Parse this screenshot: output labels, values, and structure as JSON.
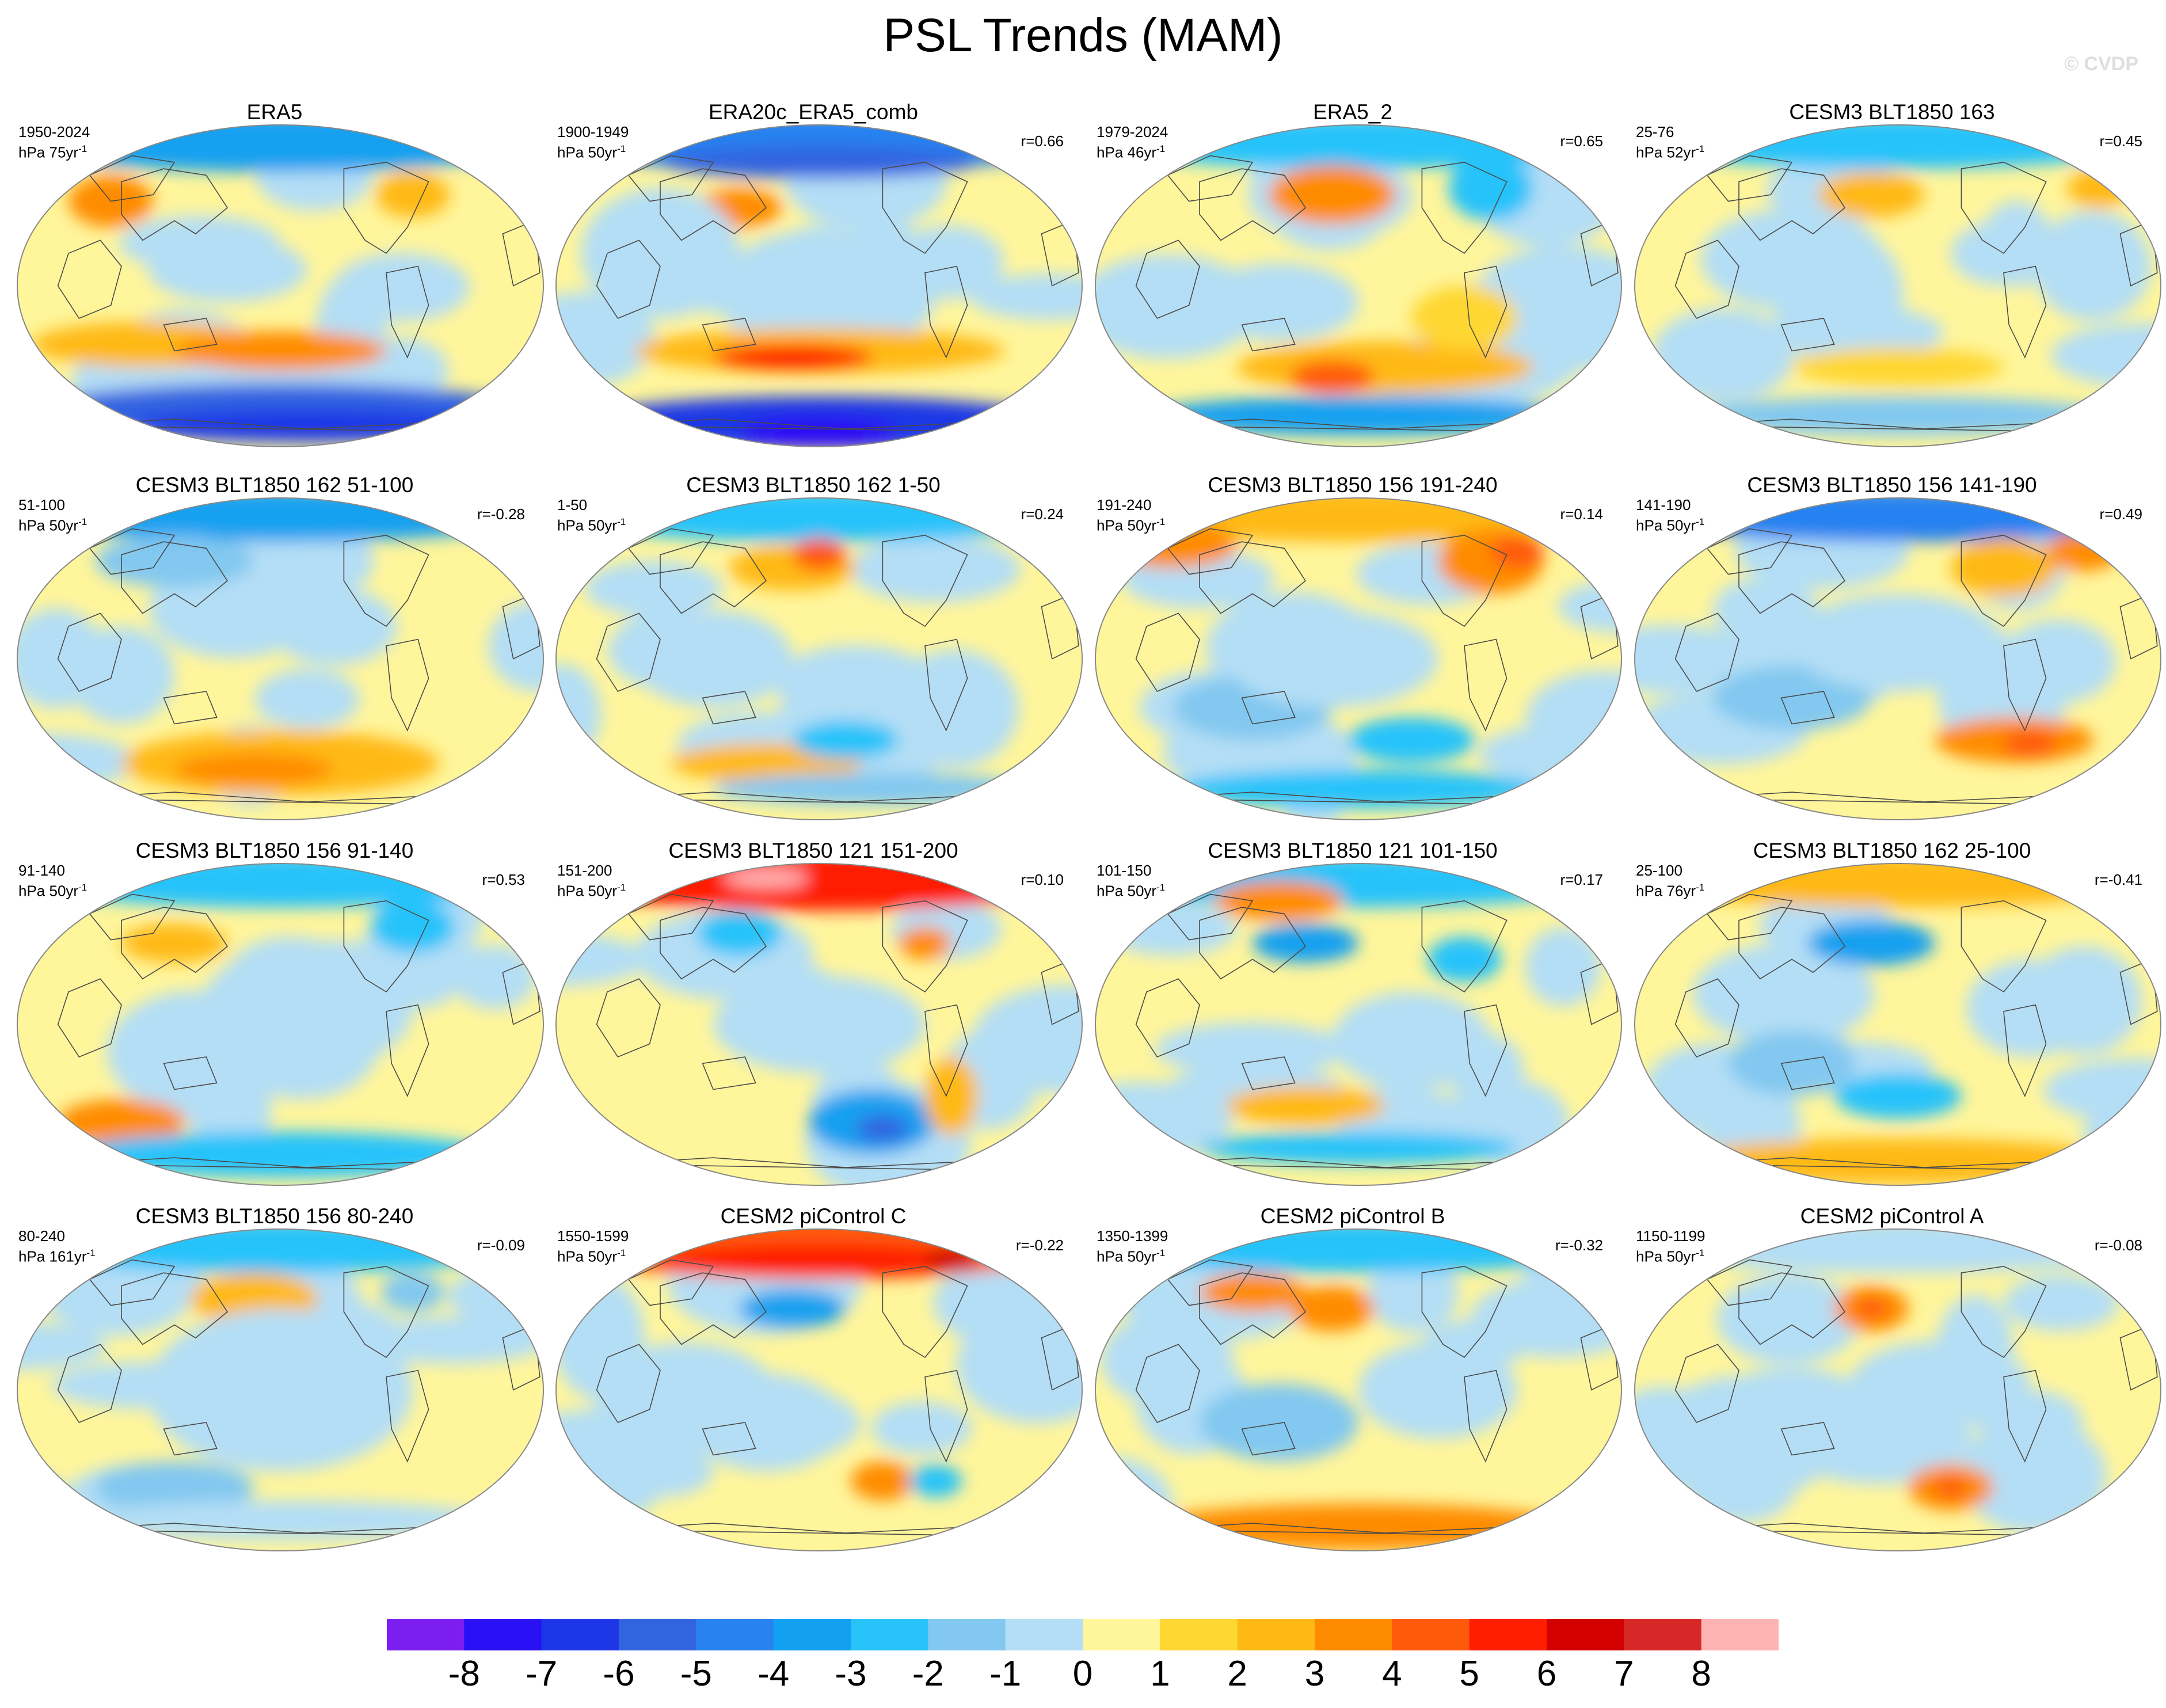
{
  "figure": {
    "title": "PSL Trends (MAM)",
    "watermark": "© CVDP"
  },
  "chart_data": {
    "type": "heatmap",
    "title": "PSL Trends (MAM)",
    "projection": "Robinson (global map panels)",
    "panels": [
      {
        "name": "ERA5",
        "period": "1950-2024",
        "units": "hPa 75yr",
        "r": ""
      },
      {
        "name": "ERA20c_ERA5_comb",
        "period": "1900-1949",
        "units": "hPa 50yr",
        "r": "r=0.66"
      },
      {
        "name": "ERA5_2",
        "period": "1979-2024",
        "units": "hPa 46yr",
        "r": "r=0.65"
      },
      {
        "name": "CESM3 BLT1850 163",
        "period": "25-76",
        "units": "hPa 52yr",
        "r": "r=0.45"
      },
      {
        "name": "CESM3 BLT1850 162 51-100",
        "period": "51-100",
        "units": "hPa 50yr",
        "r": "r=-0.28"
      },
      {
        "name": "CESM3 BLT1850 162 1-50",
        "period": "1-50",
        "units": "hPa 50yr",
        "r": "r=0.24"
      },
      {
        "name": "CESM3 BLT1850 156 191-240",
        "period": "191-240",
        "units": "hPa 50yr",
        "r": "r=0.14"
      },
      {
        "name": "CESM3 BLT1850 156 141-190",
        "period": "141-190",
        "units": "hPa 50yr",
        "r": "r=0.49"
      },
      {
        "name": "CESM3 BLT1850 156 91-140",
        "period": "91-140",
        "units": "hPa 50yr",
        "r": "r=0.53"
      },
      {
        "name": "CESM3 BLT1850 121 151-200",
        "period": "151-200",
        "units": "hPa 50yr",
        "r": "r=0.10"
      },
      {
        "name": "CESM3 BLT1850 121 101-150",
        "period": "101-150",
        "units": "hPa 50yr",
        "r": "r=0.17"
      },
      {
        "name": "CESM3 BLT1850 162 25-100",
        "period": "25-100",
        "units": "hPa 76yr",
        "r": "r=-0.41"
      },
      {
        "name": "CESM3 BLT1850 156 80-240",
        "period": "80-240",
        "units": "hPa 161yr",
        "r": "r=-0.09"
      },
      {
        "name": "CESM2 piControl C",
        "period": "1550-1599",
        "units": "hPa 50yr",
        "r": "r=-0.22"
      },
      {
        "name": "CESM2 piControl B",
        "period": "1350-1399",
        "units": "hPa 50yr",
        "r": "r=-0.32"
      },
      {
        "name": "CESM2 piControl A",
        "period": "1150-1199",
        "units": "hPa 50yr",
        "r": "r=-0.08"
      }
    ],
    "colorbar": {
      "levels": [
        "-8",
        "-7",
        "-6",
        "-5",
        "-4",
        "-3",
        "-2",
        "-1",
        "0",
        "1",
        "2",
        "3",
        "4",
        "5",
        "6",
        "7",
        "8"
      ],
      "colors": [
        "#7d1ef0",
        "#2a10f5",
        "#1e37e6",
        "#3264e0",
        "#2882f0",
        "#14a0f0",
        "#28c3fa",
        "#82c8f0",
        "#b4def5",
        "#fff59b",
        "#ffd732",
        "#ffb914",
        "#ff8c00",
        "#ff5a0a",
        "#ff1e00",
        "#d20000",
        "#d72828",
        "#ffb4b4"
      ]
    },
    "map_colors": {
      "land_outline": "#4a4a4a",
      "globe_outline": "#888888",
      "base": "#fff59b"
    }
  }
}
